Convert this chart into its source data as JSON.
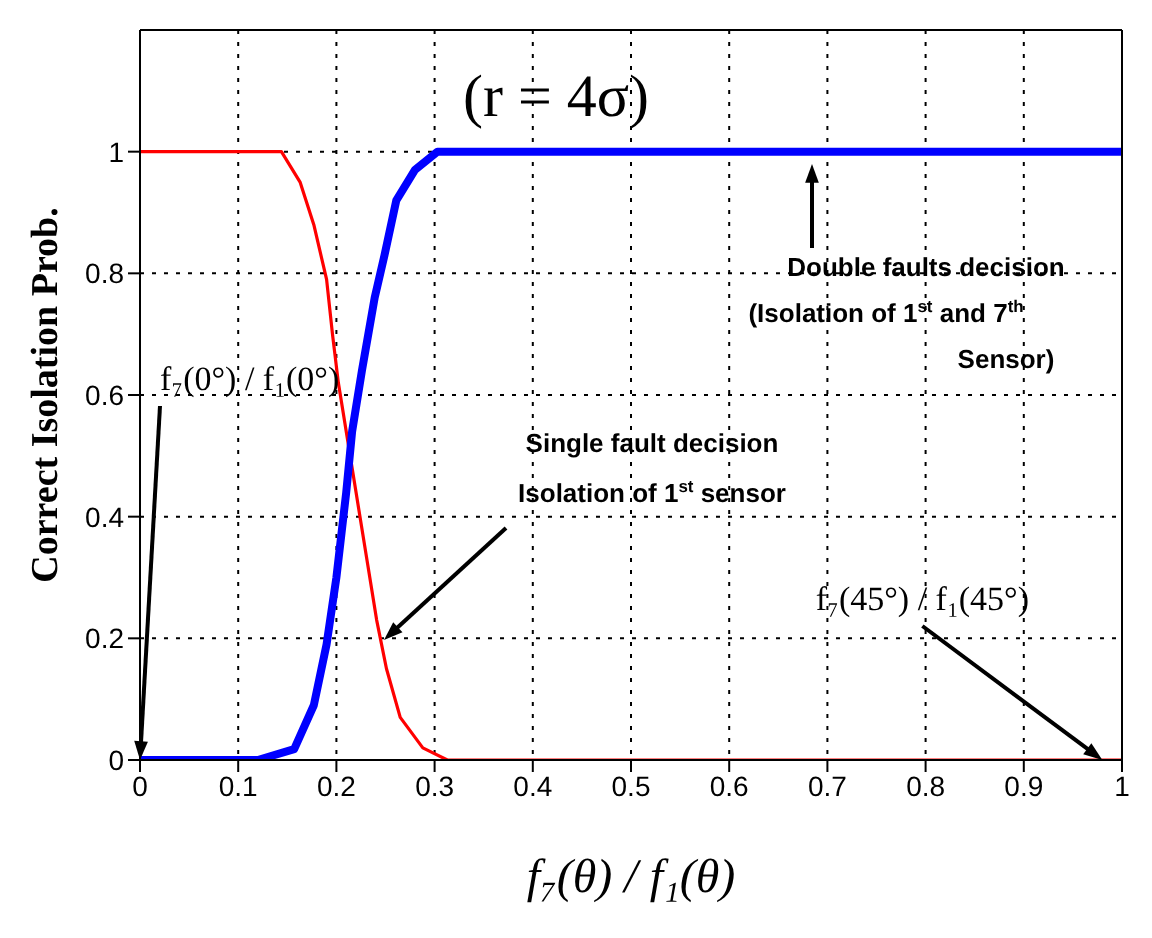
{
  "chart_data": {
    "type": "line",
    "xlabel": "f₇(θ) / f₁(θ)",
    "ylabel": "Correct Isolation Prob.",
    "xlim": [
      0,
      1
    ],
    "xticks": [
      0,
      0.1,
      0.2,
      0.3,
      0.4,
      0.5,
      0.6,
      0.7,
      0.8,
      0.9,
      1
    ],
    "ylim": [
      0,
      1.2
    ],
    "yticks": [
      0,
      0.2,
      0.4,
      0.6,
      0.8,
      1
    ],
    "grid": true,
    "marker": "none",
    "line_style": "solid",
    "series": [
      {
        "color": "#ff0000",
        "x": [
          0,
          0.1,
          0.144,
          0.163,
          0.177,
          0.19,
          0.196,
          0.202,
          0.22,
          0.232,
          0.241,
          0.251,
          0.265,
          0.288,
          0.313,
          0.4,
          0.6,
          0.8,
          1
        ],
        "values": [
          1,
          1,
          1,
          0.95,
          0.88,
          0.79,
          0.7,
          0.62,
          0.44,
          0.32,
          0.23,
          0.15,
          0.07,
          0.02,
          0,
          0,
          0,
          0,
          0
        ]
      },
      {
        "color": "#0000ff",
        "x": [
          0,
          0.1,
          0.12,
          0.157,
          0.177,
          0.19,
          0.2,
          0.21,
          0.216,
          0.226,
          0.239,
          0.249,
          0.261,
          0.28,
          0.303,
          0.4,
          0.6,
          0.8,
          1
        ],
        "values": [
          0,
          0,
          0,
          0.018,
          0.09,
          0.19,
          0.3,
          0.44,
          0.54,
          0.64,
          0.76,
          0.83,
          0.92,
          0.97,
          1,
          1,
          1,
          1,
          1
        ]
      }
    ],
    "annotations": [
      "(r = 4σ)",
      {
        "text": "f₇(0°) / f₁(0°)",
        "x": 0,
        "y": 0
      },
      "Single fault decision",
      "Isolation of 1$^{st}$ sensor",
      "Double faults decision",
      "(Isolation of 1$^{st}$ and 7$^{th}$",
      "Sensor)",
      {
        "text": "f₇(45°) / f₁(45°)",
        "x": 0.98,
        "y": 0
      }
    ]
  }
}
